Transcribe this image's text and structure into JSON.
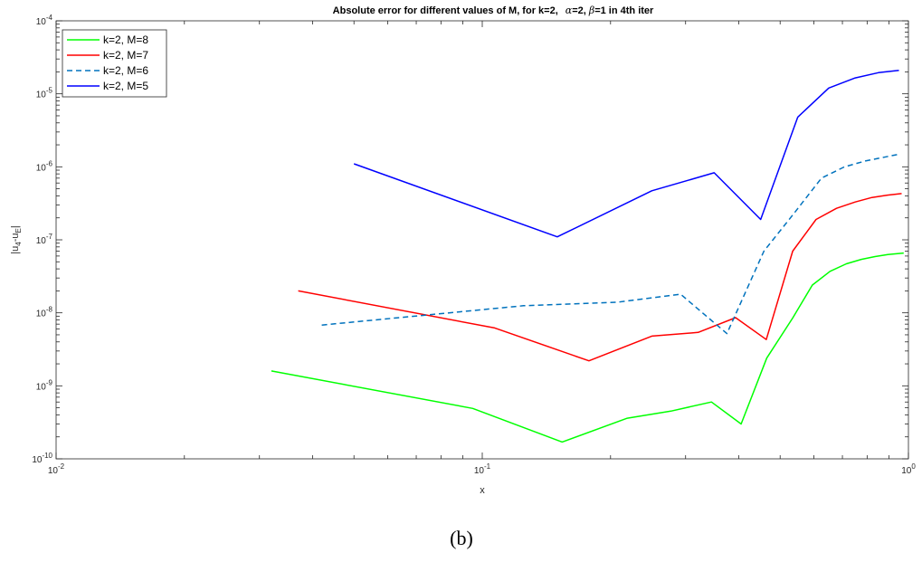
{
  "caption": "(b)",
  "chart_data": {
    "type": "line",
    "title": "Absolute error for different values of M, for k=2, α=2, β=1 in 4th iter",
    "title_parts": {
      "main": "Absolute error for different values of M, for k=2,",
      "alpha_sym": "α",
      "alpha_val": "=2, ",
      "beta_sym": "β",
      "beta_val": "=1 in 4th iter"
    },
    "xlabel": "x",
    "ylabel_parts": {
      "a": "|u",
      "sub1": "4",
      "b": "-u",
      "sub2": "E",
      "c": "|"
    },
    "xscale": "log",
    "yscale": "log",
    "xlim": [
      0.01,
      1
    ],
    "ylim": [
      1e-10,
      0.0001
    ],
    "xtick_labels": [
      {
        "base": "10",
        "exp": "-2"
      },
      {
        "base": "10",
        "exp": "-1"
      },
      {
        "base": "10",
        "exp": "0"
      }
    ],
    "ytick_labels": [
      {
        "base": "10",
        "exp": "-10"
      },
      {
        "base": "10",
        "exp": "-9"
      },
      {
        "base": "10",
        "exp": "-8"
      },
      {
        "base": "10",
        "exp": "-7"
      },
      {
        "base": "10",
        "exp": "-6"
      },
      {
        "base": "10",
        "exp": "-5"
      },
      {
        "base": "10",
        "exp": "-4"
      }
    ],
    "grid": false,
    "legend_position": "top-left",
    "series": [
      {
        "name": "k=2, M=8",
        "color": "#00ff00",
        "dash": "solid",
        "points": [
          [
            0.032,
            1.6e-09
          ],
          [
            0.095,
            4.9e-10
          ],
          [
            0.154,
            1.7e-10
          ],
          [
            0.219,
            3.6e-10
          ],
          [
            0.277,
            4.5e-10
          ],
          [
            0.345,
            6e-10
          ],
          [
            0.405,
            3e-10
          ],
          [
            0.465,
            2.4e-09
          ],
          [
            0.535,
            8.5e-09
          ],
          [
            0.595,
            2.4e-08
          ],
          [
            0.655,
            3.7e-08
          ],
          [
            0.715,
            4.7e-08
          ],
          [
            0.775,
            5.4e-08
          ],
          [
            0.835,
            5.9e-08
          ],
          [
            0.895,
            6.3e-08
          ],
          [
            0.975,
            6.6e-08
          ]
        ]
      },
      {
        "name": "k=2, M=7",
        "color": "#ff0000",
        "dash": "solid",
        "points": [
          [
            0.037,
            2e-08
          ],
          [
            0.107,
            6.2e-09
          ],
          [
            0.178,
            2.2e-09
          ],
          [
            0.25,
            4.8e-09
          ],
          [
            0.321,
            5.4e-09
          ],
          [
            0.393,
            8.6e-09
          ],
          [
            0.464,
            4.3e-09
          ],
          [
            0.535,
            7e-08
          ],
          [
            0.607,
            1.9e-07
          ],
          [
            0.678,
            2.7e-07
          ],
          [
            0.75,
            3.3e-07
          ],
          [
            0.821,
            3.8e-07
          ],
          [
            0.893,
            4.1e-07
          ],
          [
            0.964,
            4.3e-07
          ]
        ]
      },
      {
        "name": "k=2, M=6",
        "color": "#0072bd",
        "dash": "dashed",
        "points": [
          [
            0.042,
            6.8e-09
          ],
          [
            0.125,
            1.25e-08
          ],
          [
            0.208,
            1.4e-08
          ],
          [
            0.292,
            1.8e-08
          ],
          [
            0.375,
            5.2e-09
          ],
          [
            0.458,
            7e-08
          ],
          [
            0.542,
            2.4e-07
          ],
          [
            0.625,
            7e-07
          ],
          [
            0.708,
            1e-06
          ],
          [
            0.792,
            1.2e-06
          ],
          [
            0.875,
            1.35e-06
          ],
          [
            0.958,
            1.5e-06
          ]
        ]
      },
      {
        "name": "k=2, M=5",
        "color": "#0000ff",
        "dash": "solid",
        "points": [
          [
            0.05,
            1.1e-06
          ],
          [
            0.15,
            1.1e-07
          ],
          [
            0.25,
            4.7e-07
          ],
          [
            0.35,
            8.3e-07
          ],
          [
            0.45,
            1.9e-07
          ],
          [
            0.55,
            4.8e-06
          ],
          [
            0.65,
            1.2e-05
          ],
          [
            0.75,
            1.65e-05
          ],
          [
            0.85,
            1.95e-05
          ],
          [
            0.95,
            2.1e-05
          ]
        ]
      }
    ]
  }
}
